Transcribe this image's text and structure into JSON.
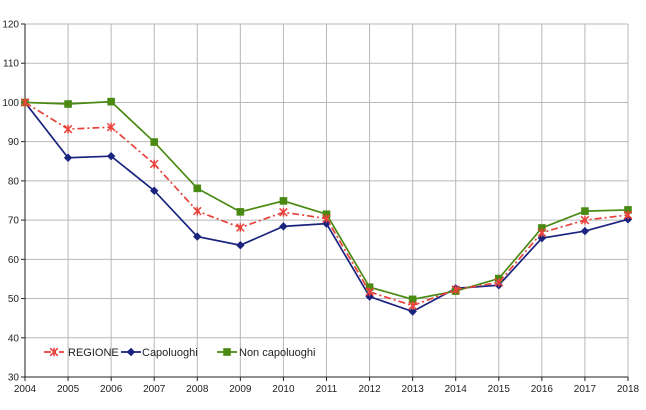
{
  "chart_data": {
    "type": "line",
    "title": "",
    "xlabel": "",
    "ylabel": "",
    "x": [
      "2004",
      "2005",
      "2006",
      "2007",
      "2008",
      "2009",
      "2010",
      "2011",
      "2012",
      "2013",
      "2014",
      "2015",
      "2016",
      "2017",
      "2018"
    ],
    "ylim": [
      30,
      120
    ],
    "yticks": [
      30,
      40,
      50,
      60,
      70,
      80,
      90,
      100,
      110,
      120
    ],
    "grid": true,
    "legend_position": "bottom-left",
    "series": [
      {
        "name": "REGIONE",
        "color": "#e8423a",
        "line_style": "dash-dot",
        "marker": "x-star",
        "values": [
          100,
          93.2,
          93.7,
          84.3,
          72.3,
          68.1,
          72.0,
          70.4,
          51.7,
          48.2,
          52.3,
          54.1,
          66.8,
          70.0,
          71.3
        ]
      },
      {
        "name": "Capoluoghi",
        "color": "#1a237e",
        "line_style": "solid",
        "marker": "diamond",
        "values": [
          100,
          85.9,
          86.3,
          77.5,
          65.8,
          63.6,
          68.4,
          69.1,
          50.5,
          46.7,
          52.6,
          53.4,
          65.4,
          67.2,
          70.2
        ]
      },
      {
        "name": "Non capoluoghi",
        "color": "#4a8a12",
        "line_style": "solid",
        "marker": "square",
        "values": [
          100,
          99.6,
          100.2,
          89.9,
          78.1,
          72.1,
          74.9,
          71.5,
          52.9,
          49.8,
          51.9,
          55.1,
          68.0,
          72.3,
          72.6
        ]
      }
    ]
  }
}
